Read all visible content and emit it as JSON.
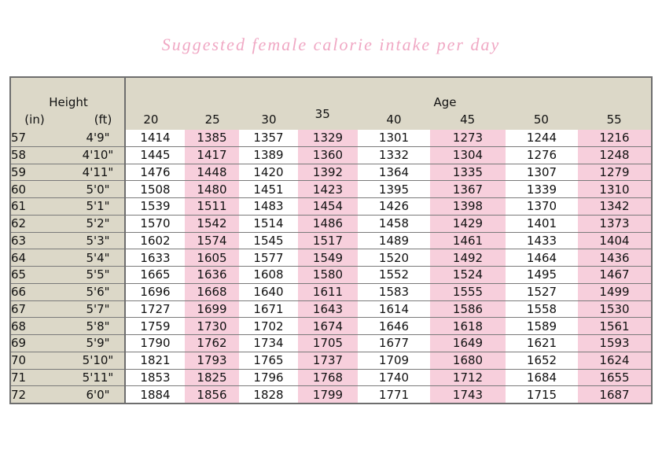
{
  "title": "Suggested female calorie intake per day",
  "header": {
    "height_label": "Height",
    "in_label": "(in)",
    "ft_label": "(ft)",
    "age_label": "Age",
    "ages": [
      "20",
      "25",
      "30",
      "35",
      "40",
      "45",
      "50",
      "55"
    ]
  },
  "rows": [
    {
      "in": "57",
      "ft": "4'9\"",
      "values": [
        "1414",
        "1385",
        "1357",
        "1329",
        "1301",
        "1273",
        "1244",
        "1216"
      ]
    },
    {
      "in": "58",
      "ft": "4'10\"",
      "values": [
        "1445",
        "1417",
        "1389",
        "1360",
        "1332",
        "1304",
        "1276",
        "1248"
      ]
    },
    {
      "in": "59",
      "ft": "4'11\"",
      "values": [
        "1476",
        "1448",
        "1420",
        "1392",
        "1364",
        "1335",
        "1307",
        "1279"
      ]
    },
    {
      "in": "60",
      "ft": "5'0\"",
      "values": [
        "1508",
        "1480",
        "1451",
        "1423",
        "1395",
        "1367",
        "1339",
        "1310"
      ]
    },
    {
      "in": "61",
      "ft": "5'1\"",
      "values": [
        "1539",
        "1511",
        "1483",
        "1454",
        "1426",
        "1398",
        "1370",
        "1342"
      ]
    },
    {
      "in": "62",
      "ft": "5'2\"",
      "values": [
        "1570",
        "1542",
        "1514",
        "1486",
        "1458",
        "1429",
        "1401",
        "1373"
      ]
    },
    {
      "in": "63",
      "ft": "5'3\"",
      "values": [
        "1602",
        "1574",
        "1545",
        "1517",
        "1489",
        "1461",
        "1433",
        "1404"
      ]
    },
    {
      "in": "64",
      "ft": "5'4\"",
      "values": [
        "1633",
        "1605",
        "1577",
        "1549",
        "1520",
        "1492",
        "1464",
        "1436"
      ]
    },
    {
      "in": "65",
      "ft": "5'5\"",
      "values": [
        "1665",
        "1636",
        "1608",
        "1580",
        "1552",
        "1524",
        "1495",
        "1467"
      ]
    },
    {
      "in": "66",
      "ft": "5'6\"",
      "values": [
        "1696",
        "1668",
        "1640",
        "1611",
        "1583",
        "1555",
        "1527",
        "1499"
      ]
    },
    {
      "in": "67",
      "ft": "5'7\"",
      "values": [
        "1727",
        "1699",
        "1671",
        "1643",
        "1614",
        "1586",
        "1558",
        "1530"
      ]
    },
    {
      "in": "68",
      "ft": "5'8\"",
      "values": [
        "1759",
        "1730",
        "1702",
        "1674",
        "1646",
        "1618",
        "1589",
        "1561"
      ]
    },
    {
      "in": "69",
      "ft": "5'9\"",
      "values": [
        "1790",
        "1762",
        "1734",
        "1705",
        "1677",
        "1649",
        "1621",
        "1593"
      ]
    },
    {
      "in": "70",
      "ft": "5'10\"",
      "values": [
        "1821",
        "1793",
        "1765",
        "1737",
        "1709",
        "1680",
        "1652",
        "1624"
      ]
    },
    {
      "in": "71",
      "ft": "5'11\"",
      "values": [
        "1853",
        "1825",
        "1796",
        "1768",
        "1740",
        "1712",
        "1684",
        "1655"
      ]
    },
    {
      "in": "72",
      "ft": "6'0\"",
      "values": [
        "1884",
        "1856",
        "1828",
        "1799",
        "1771",
        "1743",
        "1715",
        "1687"
      ]
    }
  ],
  "colors": {
    "title": "#f0a8c4",
    "header_bg": "#dcd8c8",
    "highlight_column": "#f7cfdc",
    "border": "#6e6e6e"
  }
}
